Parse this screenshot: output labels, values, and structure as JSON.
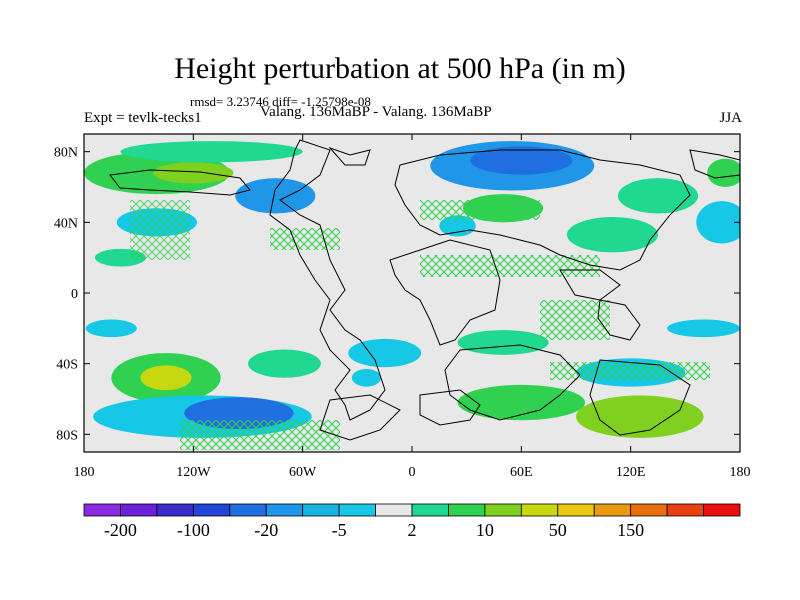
{
  "title": "Height perturbation at 500 hPa (in m)",
  "rmsd_line": "rmsd= 3.23746 diff= -1.25798e-08",
  "expt_label": "Expt = tevlk-tecks1",
  "center_label": "Valang. 136MaBP - Valang. 136MaBP",
  "season_label": "JJA",
  "map": {
    "lon_ticks": [
      {
        "lon": -180,
        "label": "180"
      },
      {
        "lon": -120,
        "label": "120W"
      },
      {
        "lon": -60,
        "label": "60W"
      },
      {
        "lon": 0,
        "label": "0"
      },
      {
        "lon": 60,
        "label": "60E"
      },
      {
        "lon": 120,
        "label": "120E"
      },
      {
        "lon": 180,
        "label": "180"
      }
    ],
    "lat_ticks": [
      {
        "lat": 80,
        "label": "80N"
      },
      {
        "lat": 40,
        "label": "40N"
      },
      {
        "lat": 0,
        "label": "0"
      },
      {
        "lat": -40,
        "label": "40S"
      },
      {
        "lat": -80,
        "label": "80S"
      }
    ],
    "background_color": "#e8e8e8"
  },
  "colorbar": {
    "colors": [
      "#8a2be2",
      "#6a21d8",
      "#3b2ccc",
      "#2346d6",
      "#1f6fe0",
      "#2096e8",
      "#1ab4e0",
      "#16c8e6",
      "#e8e8e8",
      "#20d890",
      "#30d050",
      "#80d020",
      "#c8d810",
      "#e8c810",
      "#e89a10",
      "#e87010",
      "#e84010",
      "#e81010"
    ],
    "labels": [
      {
        "index": 1,
        "text": "-200"
      },
      {
        "index": 3,
        "text": "-100"
      },
      {
        "index": 5,
        "text": "-20"
      },
      {
        "index": 7,
        "text": "-5"
      },
      {
        "index": 9,
        "text": "2"
      },
      {
        "index": 11,
        "text": "10"
      },
      {
        "index": 13,
        "text": "50"
      },
      {
        "index": 15,
        "text": "150"
      }
    ]
  },
  "anomaly_blobs": [
    {
      "lon": -140,
      "lat": 68,
      "rx": 40,
      "ry": 12,
      "color": "#30d050"
    },
    {
      "lon": -120,
      "lat": 68,
      "rx": 22,
      "ry": 6,
      "color": "#80d020"
    },
    {
      "lon": -110,
      "lat": 80,
      "rx": 50,
      "ry": 6,
      "color": "#20d890"
    },
    {
      "lon": -75,
      "lat": 55,
      "rx": 22,
      "ry": 10,
      "color": "#2096e8"
    },
    {
      "lon": -140,
      "lat": 40,
      "rx": 22,
      "ry": 8,
      "color": "#16c8e6"
    },
    {
      "lon": 55,
      "lat": 72,
      "rx": 45,
      "ry": 14,
      "color": "#2096e8"
    },
    {
      "lon": 60,
      "lat": 75,
      "rx": 28,
      "ry": 8,
      "color": "#1f6fe0"
    },
    {
      "lon": 25,
      "lat": 38,
      "rx": 10,
      "ry": 6,
      "color": "#16c8e6"
    },
    {
      "lon": 50,
      "lat": 48,
      "rx": 22,
      "ry": 8,
      "color": "#30d050"
    },
    {
      "lon": 110,
      "lat": 33,
      "rx": 25,
      "ry": 10,
      "color": "#20d890"
    },
    {
      "lon": 135,
      "lat": 55,
      "rx": 22,
      "ry": 10,
      "color": "#20d890"
    },
    {
      "lon": 170,
      "lat": 40,
      "rx": 14,
      "ry": 12,
      "color": "#16c8e6"
    },
    {
      "lon": 172,
      "lat": 68,
      "rx": 10,
      "ry": 8,
      "color": "#30d050"
    },
    {
      "lon": -135,
      "lat": -48,
      "rx": 30,
      "ry": 14,
      "color": "#30d050"
    },
    {
      "lon": -135,
      "lat": -48,
      "rx": 14,
      "ry": 7,
      "color": "#c8d810"
    },
    {
      "lon": -115,
      "lat": -70,
      "rx": 60,
      "ry": 12,
      "color": "#16c8e6"
    },
    {
      "lon": -95,
      "lat": -68,
      "rx": 30,
      "ry": 9,
      "color": "#1f6fe0"
    },
    {
      "lon": -70,
      "lat": -40,
      "rx": 20,
      "ry": 8,
      "color": "#20d890"
    },
    {
      "lon": -15,
      "lat": -34,
      "rx": 20,
      "ry": 8,
      "color": "#16c8e6"
    },
    {
      "lon": -25,
      "lat": -48,
      "rx": 8,
      "ry": 5,
      "color": "#16c8e6"
    },
    {
      "lon": 50,
      "lat": -28,
      "rx": 25,
      "ry": 7,
      "color": "#20d890"
    },
    {
      "lon": 60,
      "lat": -62,
      "rx": 35,
      "ry": 10,
      "color": "#30d050"
    },
    {
      "lon": 125,
      "lat": -70,
      "rx": 35,
      "ry": 12,
      "color": "#80d020"
    },
    {
      "lon": 120,
      "lat": -45,
      "rx": 30,
      "ry": 8,
      "color": "#16c8e6"
    },
    {
      "lon": -165,
      "lat": -20,
      "rx": 14,
      "ry": 5,
      "color": "#16c8e6"
    },
    {
      "lon": 160,
      "lat": -20,
      "rx": 20,
      "ry": 5,
      "color": "#16c8e6"
    },
    {
      "lon": -160,
      "lat": 20,
      "rx": 14,
      "ry": 5,
      "color": "#20d890"
    }
  ]
}
